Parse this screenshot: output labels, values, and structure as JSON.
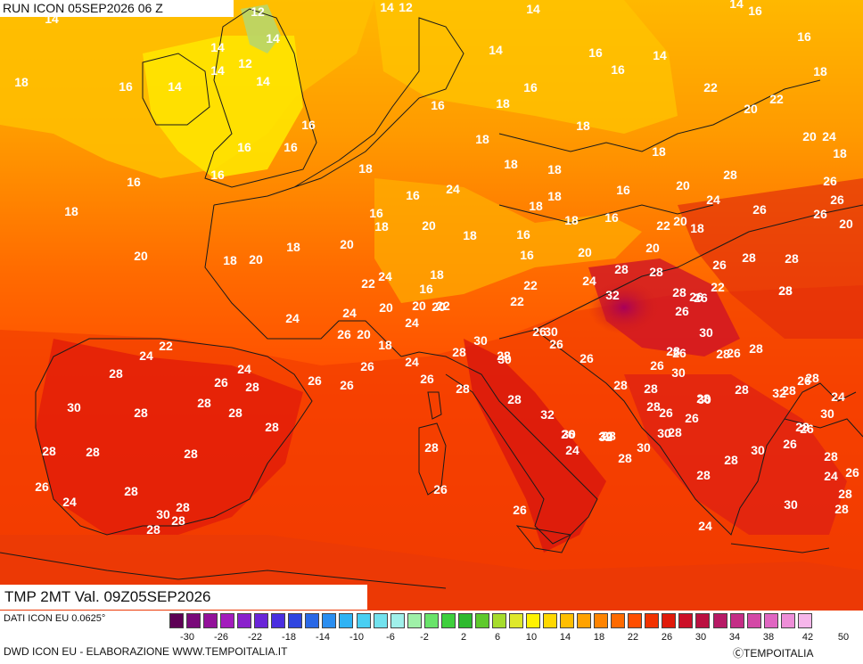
{
  "header": {
    "run_label": "RUN ICON 05SEP2026 06 Z"
  },
  "map": {
    "title": "TMP 2MT Val. 09Z05SEP2026",
    "variable": "2m temperature",
    "region": "Europe",
    "temperature_labels": [
      "14",
      "12",
      "14",
      "12",
      "14",
      "14",
      "16",
      "14",
      "14",
      "14",
      "12",
      "14",
      "18",
      "16",
      "14",
      "14",
      "16",
      "14",
      "16",
      "16",
      "18",
      "16",
      "20",
      "16",
      "18",
      "22",
      "22",
      "20",
      "16",
      "24",
      "18",
      "16",
      "18",
      "18",
      "16",
      "18",
      "18",
      "26",
      "18",
      "18",
      "16",
      "16",
      "24",
      "28",
      "20",
      "16",
      "18",
      "16",
      "16",
      "26",
      "24",
      "18",
      "18",
      "18",
      "16",
      "22",
      "20",
      "18",
      "26",
      "20",
      "18",
      "20",
      "20",
      "16",
      "26",
      "20",
      "28",
      "18",
      "16",
      "28",
      "28",
      "18",
      "20",
      "20",
      "18",
      "22",
      "22",
      "26",
      "18",
      "24",
      "20",
      "22",
      "16",
      "20",
      "32",
      "28",
      "28",
      "26",
      "20",
      "20",
      "22",
      "26",
      "28",
      "24",
      "24",
      "20",
      "24",
      "26",
      "22",
      "30",
      "28",
      "28",
      "26",
      "26",
      "30",
      "18",
      "26",
      "30",
      "26",
      "26",
      "28",
      "24",
      "28",
      "28",
      "28",
      "24",
      "26",
      "22",
      "28",
      "30",
      "26",
      "26",
      "26",
      "24",
      "28",
      "26",
      "30",
      "28",
      "28",
      "28",
      "26",
      "28",
      "24",
      "26",
      "28",
      "28",
      "28",
      "30",
      "26",
      "28",
      "30",
      "28",
      "28",
      "28",
      "32",
      "28",
      "26",
      "28",
      "24",
      "26",
      "30",
      "32",
      "28",
      "26",
      "28",
      "30",
      "28",
      "30",
      "32",
      "28",
      "30",
      "28",
      "28",
      "30",
      "30",
      "28",
      "26",
      "28",
      "26",
      "24",
      "28",
      "26",
      "24",
      "28",
      "28",
      "28",
      "26",
      "28",
      "24",
      "26",
      "30",
      "28",
      "28",
      "30",
      "28",
      "28",
      "26",
      "24"
    ]
  },
  "legend": {
    "colors": [
      "#5e0055",
      "#7a0a7a",
      "#93129a",
      "#a31bbd",
      "#8a20cc",
      "#6a25d8",
      "#4a2ee0",
      "#2f45e0",
      "#2a68e6",
      "#2b8ef0",
      "#2fb3f4",
      "#49cff2",
      "#72e2ee",
      "#a0f0ea",
      "#9ff0a8",
      "#69e36a",
      "#3fcf3c",
      "#2eba2e",
      "#5ec92c",
      "#a6dc2c",
      "#dfe82a",
      "#fff200",
      "#ffd800",
      "#ffbe00",
      "#ffa200",
      "#ff8400",
      "#ff6a00",
      "#ff4e00",
      "#f23200",
      "#e01a0a",
      "#cc1028",
      "#bb1040",
      "#b71a66",
      "#c42d86",
      "#d448a6",
      "#e066c2",
      "#ee8ed8",
      "#f6b6ea"
    ],
    "tick_labels": [
      "-30",
      "-26",
      "-22",
      "-18",
      "-14",
      "-10",
      "-6",
      "-2",
      "2",
      "6",
      "10",
      "14",
      "18",
      "22",
      "26",
      "30",
      "34",
      "38",
      "42",
      "50"
    ]
  },
  "footer": {
    "data_source": "DATI ICON EU 0.0625°",
    "producer": "DWD ICON EU - ELABORAZIONE WWW.TEMPOITALIA.IT",
    "copyright": "ⒸTEMPOITALIA"
  }
}
